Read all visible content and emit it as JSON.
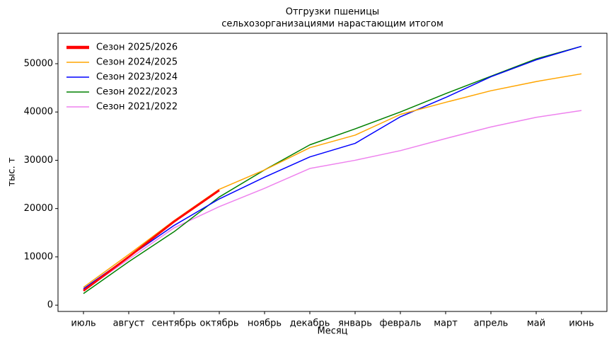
{
  "chart_data": {
    "type": "line",
    "title": "Отгрузки пшеницы",
    "subtitle": "сельхозорганизациями нарастающим итогом",
    "x_label": "Месяц",
    "y_label": "тыс. т",
    "categories": [
      "июль",
      "август",
      "сентябрь",
      "октябрь",
      "ноябрь",
      "декабрь",
      "январь",
      "февраль",
      "март",
      "апрель",
      "май",
      "июнь"
    ],
    "series": [
      {
        "name": "Сезон 2025/2026",
        "color": "#ff0000",
        "linewidth": 3,
        "values": [
          3000,
          10000,
          17300,
          23800,
          null,
          null,
          null,
          null,
          null,
          null,
          null,
          null
        ]
      },
      {
        "name": "Сезон 2024/2025",
        "color": "#ffa500",
        "linewidth": 1.5,
        "values": [
          3700,
          10500,
          17500,
          24000,
          28000,
          32600,
          35200,
          39500,
          42000,
          44400,
          46300,
          47900
        ]
      },
      {
        "name": "Сезон 2023/2024",
        "color": "#0000ff",
        "linewidth": 1.5,
        "values": [
          3400,
          10000,
          16500,
          22000,
          26500,
          30700,
          33500,
          39000,
          43000,
          47300,
          50800,
          53600
        ]
      },
      {
        "name": "Сезон 2022/2023",
        "color": "#008000",
        "linewidth": 1.5,
        "values": [
          2400,
          9000,
          15200,
          22400,
          28000,
          33200,
          36500,
          40000,
          43800,
          47400,
          51000,
          53600
        ]
      },
      {
        "name": "Сезон 2021/2022",
        "color": "#ee82ee",
        "linewidth": 1.5,
        "values": [
          3000,
          9500,
          16000,
          20400,
          24200,
          28300,
          30000,
          32000,
          34500,
          36900,
          38900,
          40300
        ]
      }
    ],
    "ylim": [
      -1300,
      56300
    ],
    "yticks": [
      0,
      10000,
      20000,
      30000,
      40000,
      50000
    ],
    "legend": "upper-left"
  }
}
